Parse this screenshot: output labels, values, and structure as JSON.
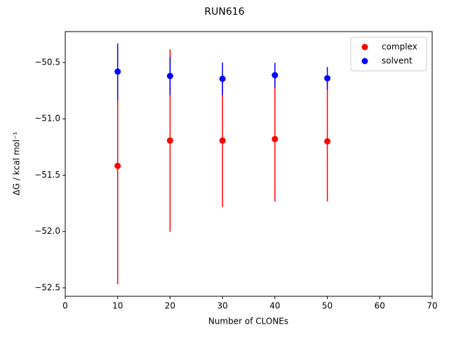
{
  "chart_data": {
    "type": "errorbar-scatter",
    "title": "RUN616",
    "x_label": "Number of CLONEs",
    "y_label": "ΔG / kcal mol⁻¹",
    "xlim": [
      0,
      70
    ],
    "xticks": [
      0,
      10,
      20,
      30,
      40,
      50,
      60,
      70
    ],
    "ylim": [
      -52.575,
      -50.226
    ],
    "yticks": [
      {
        "value": -52.5,
        "label": "−52.5"
      },
      {
        "value": -52.0,
        "label": "−52.0"
      },
      {
        "value": -51.5,
        "label": "−51.5"
      },
      {
        "value": -51.0,
        "label": "−51.0"
      },
      {
        "value": -50.5,
        "label": "−50.5"
      }
    ],
    "legend": "upper right",
    "x": [
      10,
      20,
      30,
      40,
      50
    ],
    "series": [
      {
        "name": "complex",
        "color": "#ff0000",
        "values": [
          -51.418,
          -51.193,
          -51.193,
          -51.18,
          -51.2
        ],
        "errors": [
          1.05,
          0.81,
          0.59,
          0.555,
          0.535
        ]
      },
      {
        "name": "solvent",
        "color": "#0000ff",
        "values": [
          -50.581,
          -50.62,
          -50.645,
          -50.613,
          -50.64
        ],
        "errors": [
          0.25,
          0.17,
          0.145,
          0.11,
          0.1
        ]
      }
    ]
  }
}
